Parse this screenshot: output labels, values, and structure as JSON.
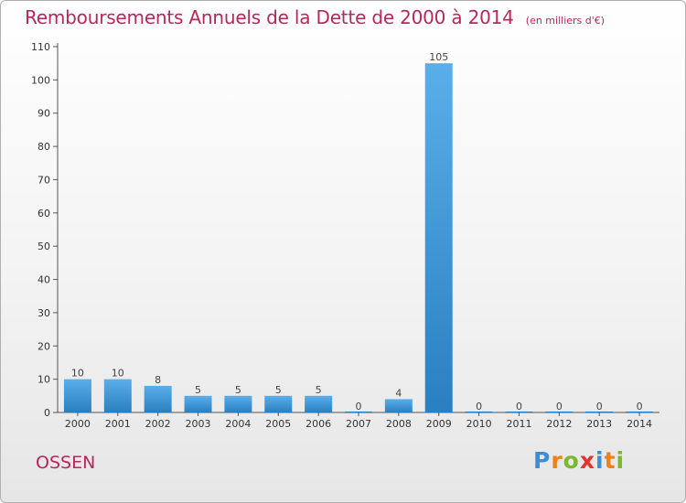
{
  "title": "Remboursements Annuels de la Dette de 2000 à 2014",
  "unit_note": "(en milliers d'€)",
  "commune": "OSSEN",
  "logo": {
    "text": "Proxiti",
    "letters": [
      {
        "ch": "P",
        "color": "#3a8ed8"
      },
      {
        "ch": "r",
        "color": "#f07f1b"
      },
      {
        "ch": "o",
        "color": "#7ab82e"
      },
      {
        "ch": "x",
        "color": "#e5322d"
      },
      {
        "ch": "i",
        "color": "#3a8ed8"
      },
      {
        "ch": "t",
        "color": "#f07f1b"
      },
      {
        "ch": "i",
        "color": "#7ab82e"
      }
    ]
  },
  "colors": {
    "title": "#b4285a",
    "bar_light": "#5aaeea",
    "bar_dark": "#2a7fc0"
  },
  "chart_data": {
    "type": "bar",
    "title": "Remboursements Annuels de la Dette de 2000 à 2014",
    "categories": [
      "2000",
      "2001",
      "2002",
      "2003",
      "2004",
      "2005",
      "2006",
      "2007",
      "2008",
      "2009",
      "2010",
      "2011",
      "2012",
      "2013",
      "2014"
    ],
    "values": [
      10,
      10,
      8,
      5,
      5,
      5,
      5,
      0,
      4,
      105,
      0,
      0,
      0,
      0,
      0
    ],
    "ylim": [
      0,
      110
    ],
    "yticks": [
      0,
      10,
      20,
      30,
      40,
      50,
      60,
      70,
      80,
      90,
      100,
      110
    ],
    "grid": false,
    "legend": "none"
  }
}
